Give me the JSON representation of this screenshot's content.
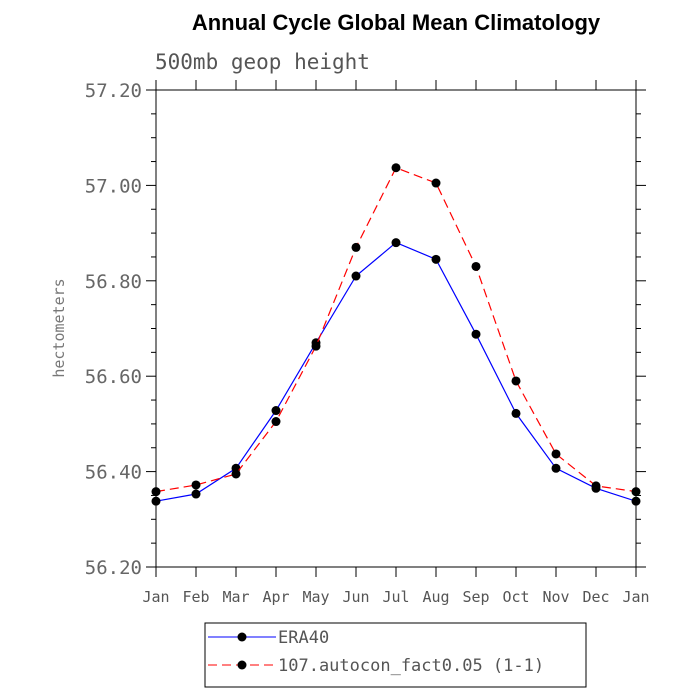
{
  "chart_data": {
    "type": "line",
    "title": "Annual Cycle Global Mean Climatology",
    "subtitle": "500mb geop height",
    "ylabel": "hectometers",
    "xlabel": "",
    "categories": [
      "Jan",
      "Feb",
      "Mar",
      "Apr",
      "May",
      "Jun",
      "Jul",
      "Aug",
      "Sep",
      "Oct",
      "Nov",
      "Dec",
      "Jan"
    ],
    "ylim": [
      56.2,
      57.2
    ],
    "yticks": [
      "56.20",
      "56.40",
      "56.60",
      "56.80",
      "57.00",
      "57.20"
    ],
    "series": [
      {
        "name": "ERA40",
        "color": "#0000ff",
        "dash": "solid",
        "values": [
          56.338,
          56.353,
          56.407,
          56.528,
          56.67,
          56.81,
          56.88,
          56.845,
          56.688,
          56.522,
          56.407,
          56.365,
          56.338
        ]
      },
      {
        "name": "107.autocon_fact0.05 (1-1)",
        "color": "#ff0000",
        "dash": "dashed",
        "values": [
          56.358,
          56.372,
          56.395,
          56.505,
          56.663,
          56.87,
          57.037,
          57.005,
          56.83,
          56.59,
          56.437,
          56.37,
          56.358
        ]
      }
    ]
  }
}
